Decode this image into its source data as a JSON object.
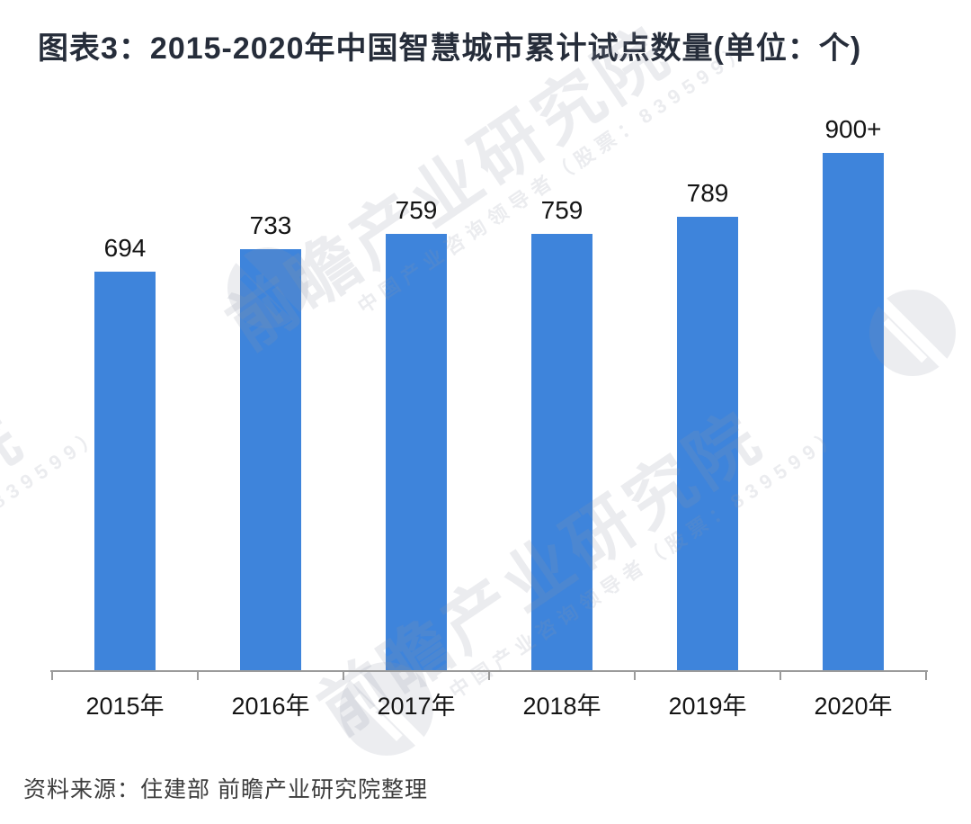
{
  "title": "图表3：2015-2020年中国智慧城市累计试点数量(单位：个)",
  "source": "资料来源：住建部 前瞻产业研究院整理",
  "watermark": {
    "main": "前瞻产业研究院",
    "sub": "中国产业咨询领导者（股票：839599）"
  },
  "colors": {
    "bar": "#3E84DB",
    "axis": "#9B9B9B",
    "title_text": "#262D3A",
    "label_text": "#141414",
    "source_text": "#3D3D3D",
    "watermark_tint": "rgba(144,152,166,0.18)"
  },
  "chart_data": {
    "type": "bar",
    "title": "图表3：2015-2020年中国智慧城市累计试点数量(单位：个)",
    "categories": [
      "2015年",
      "2016年",
      "2017年",
      "2018年",
      "2019年",
      "2020年"
    ],
    "values": [
      694,
      733,
      759,
      759,
      789,
      900
    ],
    "display_labels": [
      "694",
      "733",
      "759",
      "759",
      "789",
      "900+"
    ],
    "xlabel": "",
    "ylabel": "",
    "unit": "个",
    "ylim": [
      0,
      900
    ],
    "y_axis_visible": false,
    "grid": false,
    "legend": false,
    "bar_color": "#3E84DB"
  }
}
